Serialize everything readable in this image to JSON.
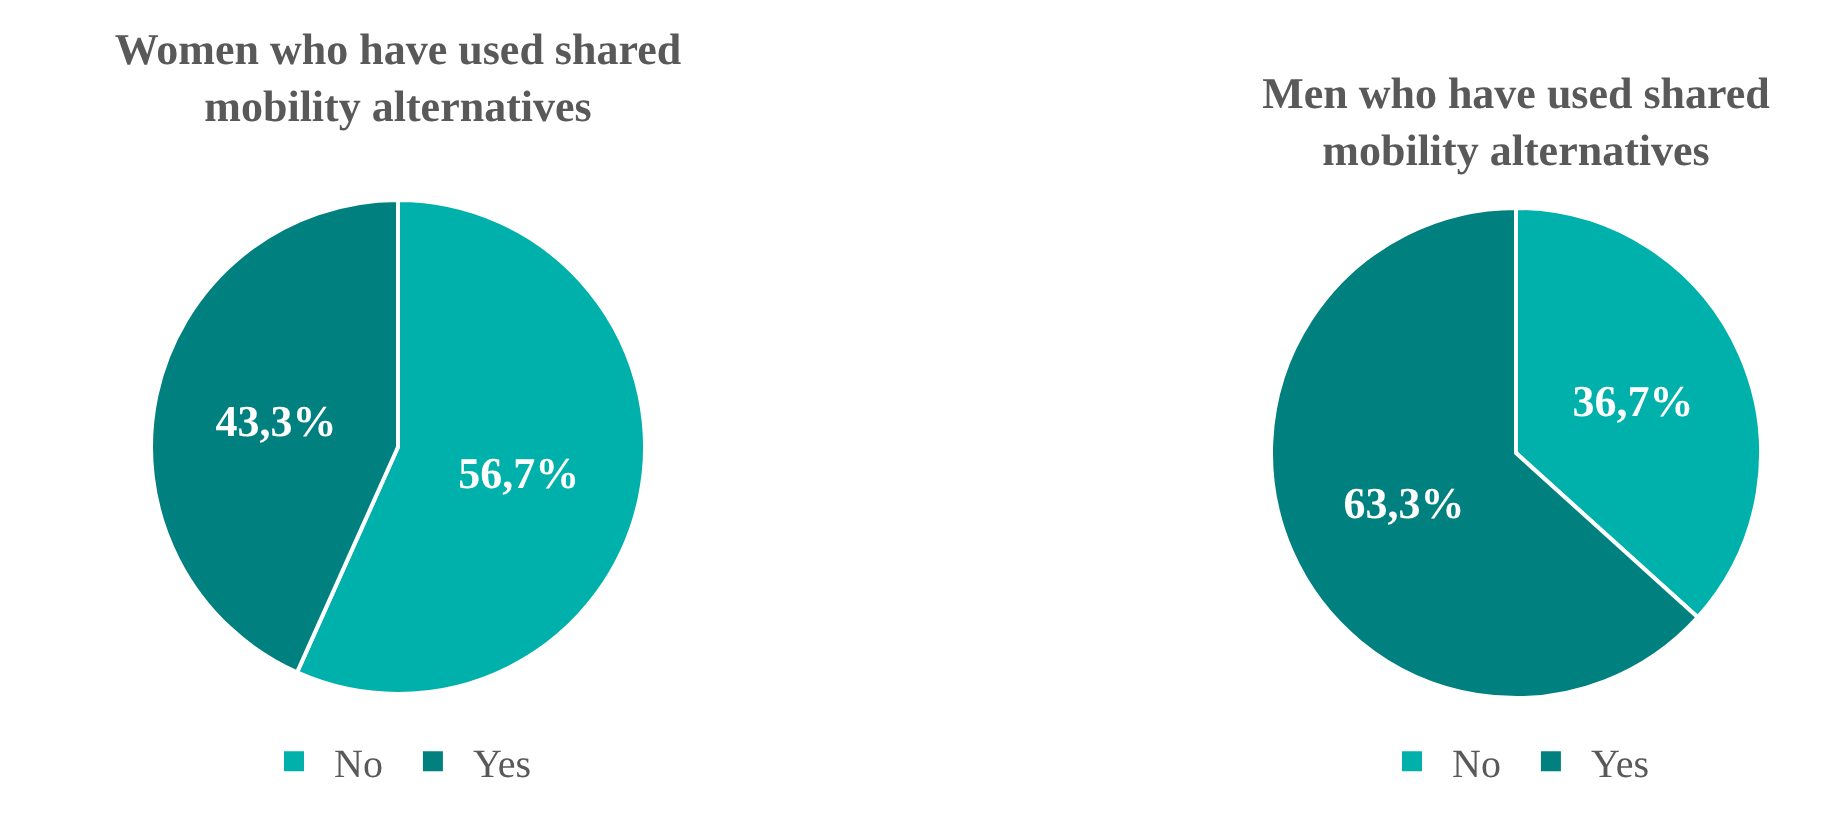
{
  "chart_data": [
    {
      "type": "pie",
      "title": "Women who have used shared mobility alternatives",
      "categories": [
        "No",
        "Yes"
      ],
      "values": [
        56.7,
        43.3
      ],
      "colors": [
        "#00b0aa",
        "#00807f"
      ],
      "value_labels": [
        "56,7%",
        "43,3%"
      ],
      "legend": "bottom"
    },
    {
      "type": "pie",
      "title": "Men who have used shared mobility alternatives",
      "categories": [
        "No",
        "Yes"
      ],
      "values": [
        36.7,
        63.3
      ],
      "colors": [
        "#00b0aa",
        "#00807f"
      ],
      "value_labels": [
        "36,7%",
        "63,3%"
      ],
      "legend": "bottom"
    }
  ]
}
